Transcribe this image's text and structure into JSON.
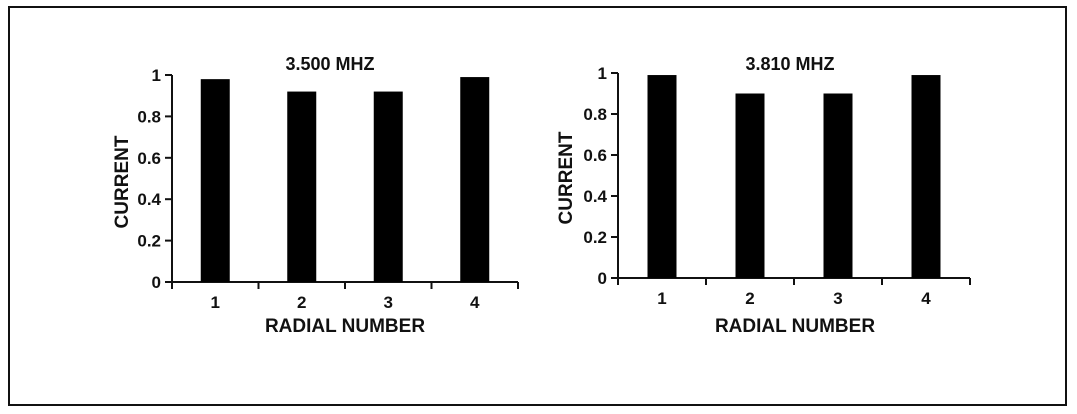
{
  "chart_data": [
    {
      "type": "bar",
      "title": "3.500 MHZ",
      "xlabel": "RADIAL NUMBER",
      "ylabel": "CURRENT",
      "categories": [
        "1",
        "2",
        "3",
        "4"
      ],
      "values": [
        0.98,
        0.92,
        0.92,
        0.99
      ],
      "ylim": [
        0,
        1
      ],
      "yticks": [
        "0",
        "0.2",
        "0.4",
        "0.6",
        "0.8",
        "1"
      ],
      "grid": false,
      "bar_color": "#000000"
    },
    {
      "type": "bar",
      "title": "3.810 MHZ",
      "xlabel": "RADIAL NUMBER",
      "ylabel": "CURRENT",
      "categories": [
        "1",
        "2",
        "3",
        "4"
      ],
      "values": [
        0.99,
        0.9,
        0.9,
        0.99
      ],
      "ylim": [
        0,
        1
      ],
      "yticks": [
        "0",
        "0.2",
        "0.4",
        "0.6",
        "0.8",
        "1"
      ],
      "grid": false,
      "bar_color": "#000000"
    }
  ]
}
